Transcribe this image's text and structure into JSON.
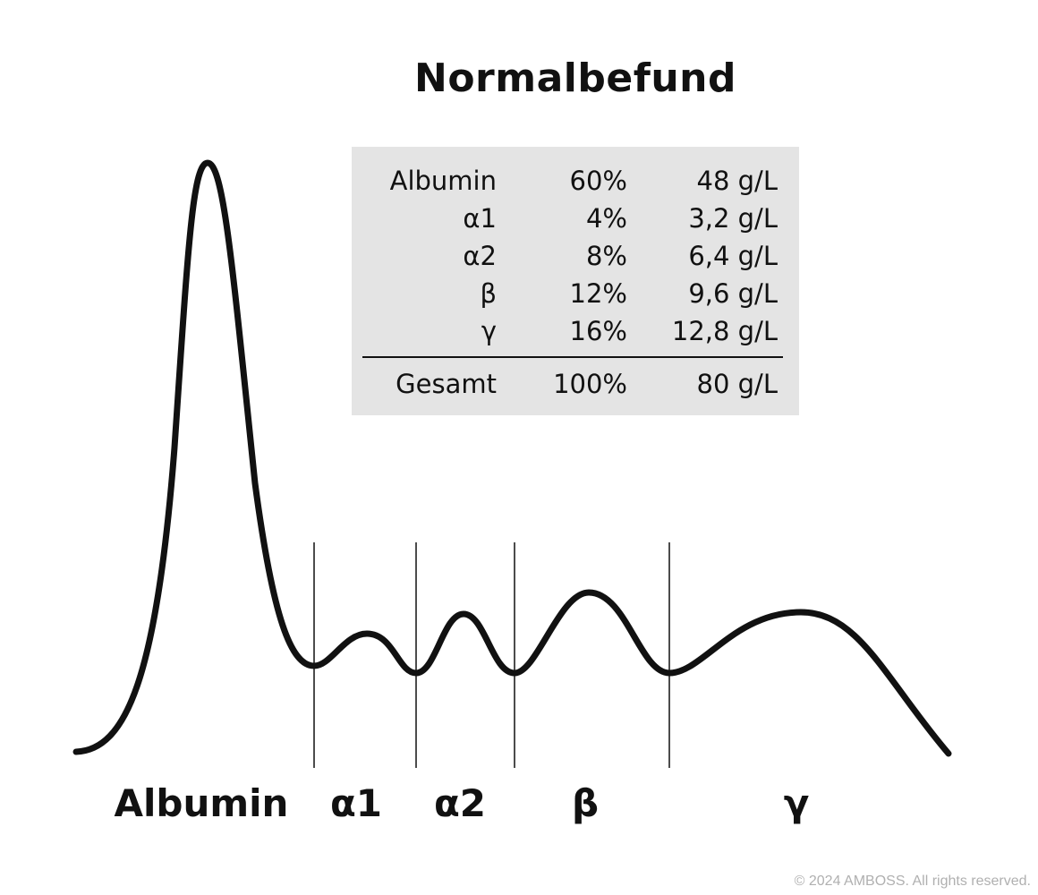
{
  "title": "Normalbefund",
  "table": {
    "rows": [
      {
        "name": "Albumin",
        "percent": "60%",
        "value": "48 g/L"
      },
      {
        "name": "α1",
        "percent": "4%",
        "value": "3,2 g/L"
      },
      {
        "name": "α2",
        "percent": "8%",
        "value": "6,4 g/L"
      },
      {
        "name": "β",
        "percent": "12%",
        "value": "9,6 g/L"
      },
      {
        "name": "γ",
        "percent": "16%",
        "value": "12,8 g/L"
      }
    ],
    "total": {
      "name": "Gesamt",
      "percent": "100%",
      "value": "80 g/L"
    }
  },
  "fractions": {
    "albumin": "Albumin",
    "alpha1": "α1",
    "alpha2": "α2",
    "beta": "β",
    "gamma": "γ"
  },
  "copyright": "© 2024 AMBOSS. All rights reserved."
}
